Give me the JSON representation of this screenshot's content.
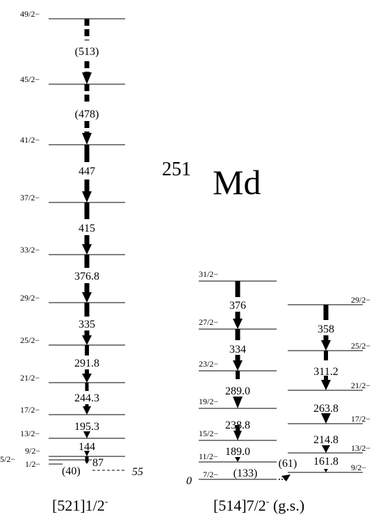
{
  "nucleus": {
    "mass": "251",
    "symbol": "Md"
  },
  "band_titles": {
    "left": "[521]1/2",
    "left_sup": "-",
    "right": "[514]7/2",
    "right_sup": "-",
    "right_suffix": " (g.s.)"
  },
  "band_head_energies": {
    "left": "55",
    "ground": "0"
  },
  "left_band": {
    "spins": [
      "49/2−",
      "45/2−",
      "41/2−",
      "37/2−",
      "33/2−",
      "29/2−",
      "25/2−",
      "21/2−",
      "17/2−",
      "13/2−",
      "9/2−",
      "5/2−",
      "1/2−"
    ],
    "transitions": [
      "(513)",
      "(478)",
      "447",
      "415",
      "376.8",
      "335",
      "291.8",
      "244.3",
      "195.3",
      "144",
      "87",
      "(40)"
    ]
  },
  "middle_band": {
    "spins": [
      "31/2−",
      "27/2−",
      "23/2−",
      "19/2−",
      "15/2−",
      "11/2−",
      "7/2−"
    ],
    "transitions": [
      "376",
      "334",
      "289.0",
      "238.8",
      "189.0",
      "(133)"
    ]
  },
  "right_band": {
    "spins": [
      "29/2−",
      "25/2−",
      "21/2−",
      "17/2−",
      "13/2−",
      "9/2−"
    ],
    "transitions": [
      "358",
      "311.2",
      "263.8",
      "214.8",
      "161.8"
    ],
    "interband": "(61)"
  }
}
